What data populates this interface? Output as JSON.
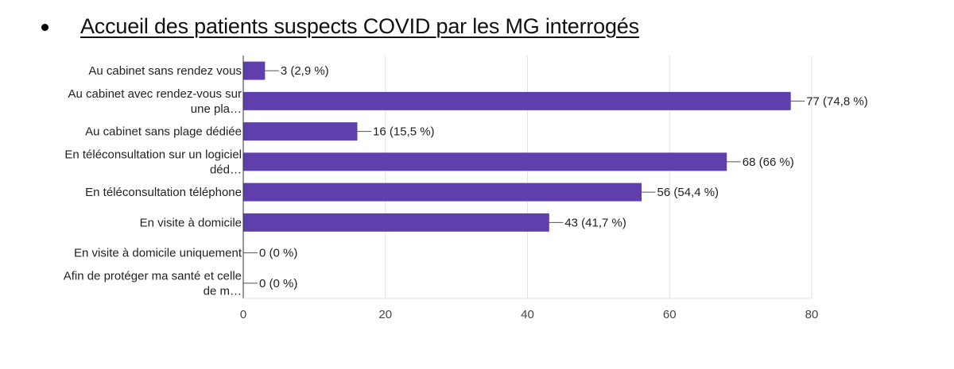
{
  "slide": {
    "title": "Accueil des patients suspects COVID par les MG interrogés"
  },
  "chart_data": {
    "type": "bar",
    "orientation": "horizontal",
    "title": "",
    "xlabel": "",
    "ylabel": "",
    "xlim": [
      0,
      80
    ],
    "x_ticks": [
      0,
      20,
      40,
      60,
      80
    ],
    "grid": true,
    "bar_color": "#5e3fac",
    "categories": [
      [
        "Au cabinet sans rendez vous"
      ],
      [
        "Au cabinet avec rendez-vous sur",
        "une pla…"
      ],
      [
        "Au cabinet sans plage dédiée"
      ],
      [
        "En téléconsultation sur un logiciel",
        "déd…"
      ],
      [
        "En téléconsultation téléphone"
      ],
      [
        "En visite à domicile"
      ],
      [
        "En visite à domicile uniquement"
      ],
      [
        "Afin de protéger ma santé et celle",
        "de m…"
      ]
    ],
    "values": [
      3,
      77,
      16,
      68,
      56,
      43,
      0,
      0
    ],
    "data_labels": [
      "3 (2,9 %)",
      "77 (74,8 %)",
      "16 (15,5 %)",
      "68 (66 %)",
      "56 (54,4 %)",
      "43 (41,7 %)",
      "0 (0 %)",
      "0 (0 %)"
    ]
  }
}
